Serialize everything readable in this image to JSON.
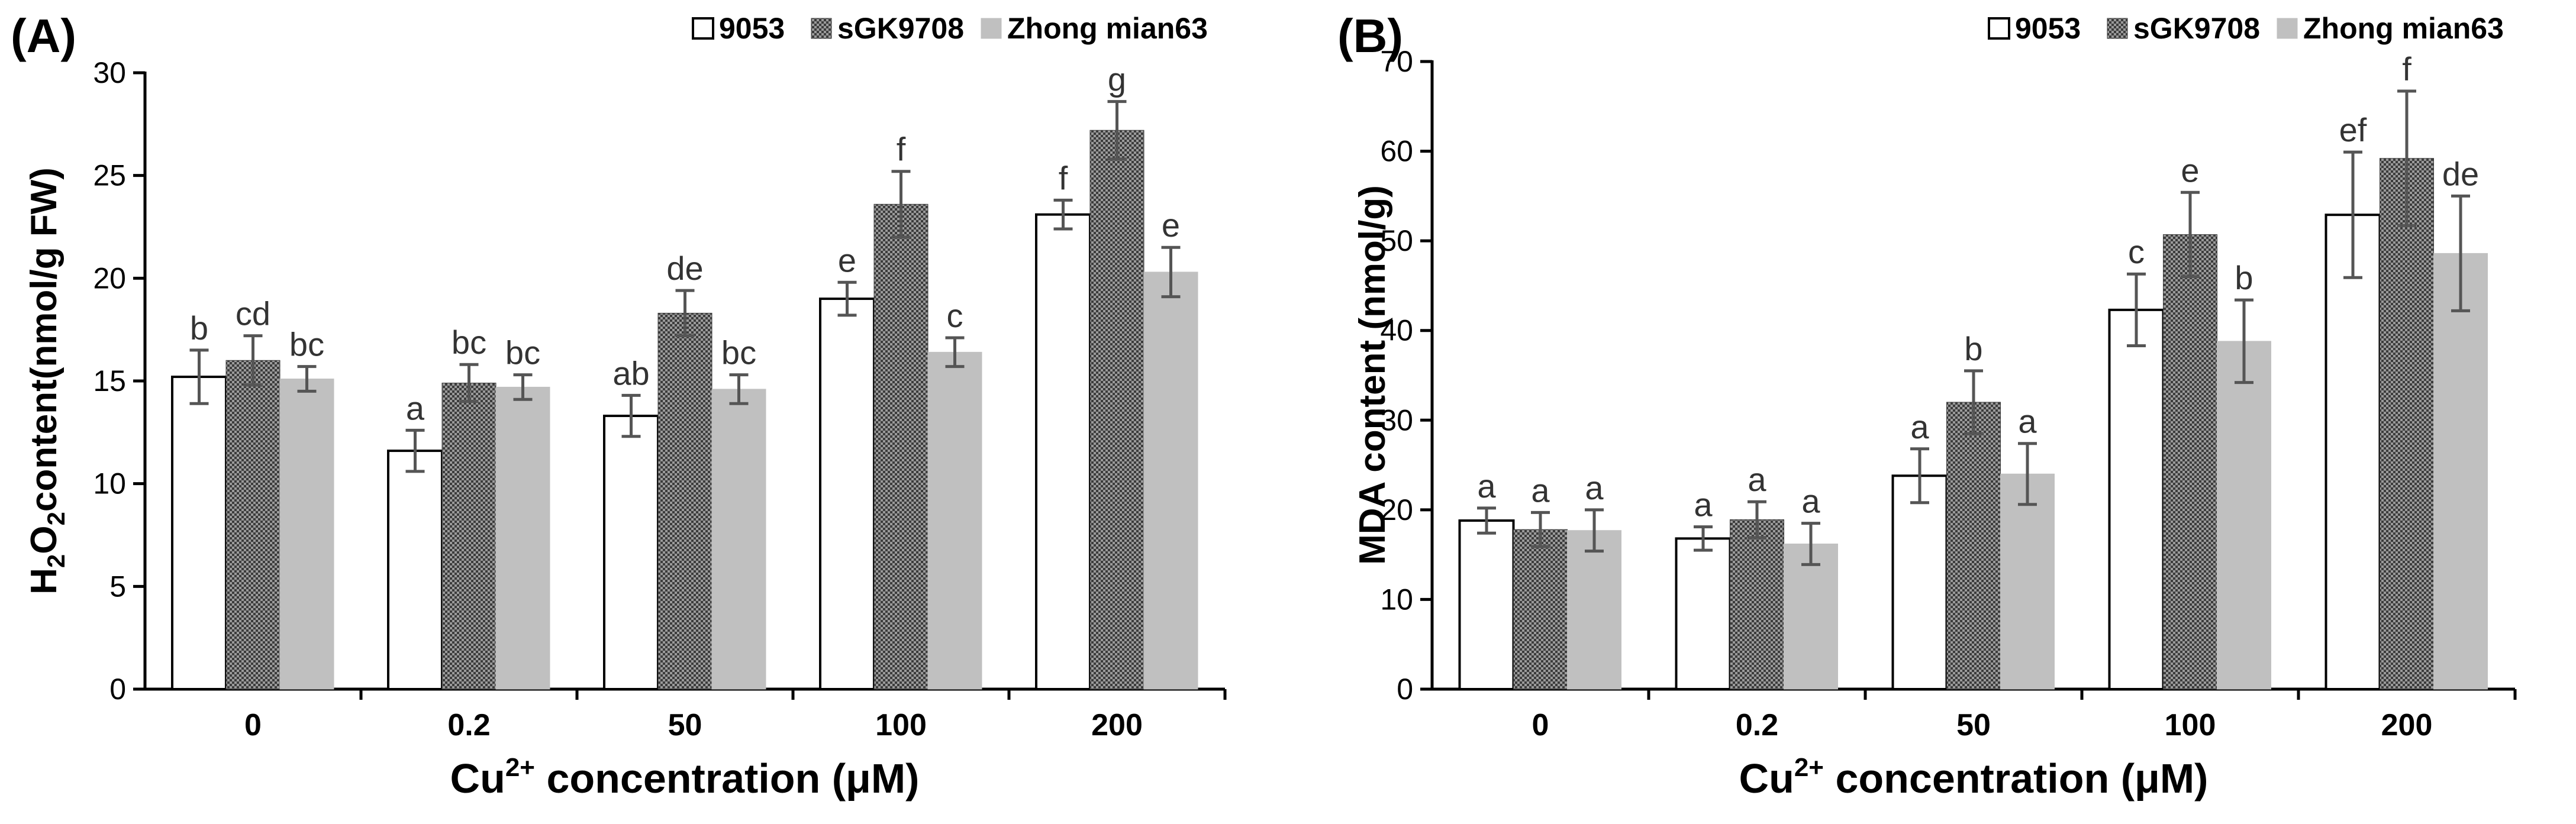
{
  "chart_data": [
    {
      "type": "bar",
      "panel": "(A)",
      "categories": [
        "0",
        "0.2",
        "50",
        "100",
        "200"
      ],
      "series": [
        {
          "name": "9053",
          "values": [
            15.2,
            11.6,
            13.3,
            19.0,
            23.1
          ],
          "errors": [
            1.3,
            1.0,
            1.0,
            0.8,
            0.7
          ],
          "letters": [
            "b",
            "a",
            "ab",
            "e",
            "f"
          ]
        },
        {
          "name": "sGK9708",
          "values": [
            16.0,
            14.9,
            18.3,
            23.6,
            27.2
          ],
          "errors": [
            1.2,
            0.9,
            1.1,
            1.6,
            1.4
          ],
          "letters": [
            "cd",
            "bc",
            "de",
            "f",
            "g"
          ]
        },
        {
          "name": "Zhong mian63",
          "values": [
            15.1,
            14.7,
            14.6,
            16.4,
            20.3
          ],
          "errors": [
            0.6,
            0.6,
            0.7,
            0.7,
            1.2
          ],
          "letters": [
            "bc",
            "bc",
            "bc",
            "c",
            "e"
          ]
        }
      ],
      "ylabel_parts": [
        "H",
        "2",
        "O",
        "2",
        "content(nmol/g FW)"
      ],
      "xlabel_parts": [
        "Cu",
        "2+",
        " concentration (μM)"
      ],
      "ylim": [
        0,
        30
      ],
      "yticks": [
        0,
        5,
        10,
        15,
        20,
        25,
        30
      ],
      "legend": "top-right"
    },
    {
      "type": "bar",
      "panel": "(B)",
      "categories": [
        "0",
        "0.2",
        "50",
        "100",
        "200"
      ],
      "series": [
        {
          "name": "9053",
          "values": [
            18.8,
            16.8,
            23.8,
            42.3,
            52.9
          ],
          "errors": [
            1.4,
            1.3,
            3.0,
            4.0,
            7.0
          ],
          "letters": [
            "a",
            "a",
            "a",
            "c",
            "ef"
          ]
        },
        {
          "name": "sGK9708",
          "values": [
            17.8,
            18.9,
            32.0,
            50.7,
            59.2
          ],
          "errors": [
            1.9,
            2.0,
            3.5,
            4.7,
            7.5
          ],
          "letters": [
            "a",
            "a",
            "b",
            "e",
            "f"
          ]
        },
        {
          "name": "Zhong mian63",
          "values": [
            17.7,
            16.2,
            24.0,
            38.8,
            48.6
          ],
          "errors": [
            2.3,
            2.3,
            3.4,
            4.6,
            6.4
          ],
          "letters": [
            "a",
            "a",
            "a",
            "b",
            "de"
          ]
        }
      ],
      "ylabel_parts": [
        "MDA content (nmol/g)"
      ],
      "xlabel_parts": [
        "Cu",
        "2+",
        " concentration (μM)"
      ],
      "ylim": [
        0,
        70
      ],
      "yticks": [
        0,
        10,
        20,
        30,
        40,
        50,
        60,
        70
      ],
      "legend": "top-right"
    }
  ],
  "colors": {
    "series_9053": "#ffffff",
    "series_sGK9708": "#7a7a7a",
    "series_Zhong": "#c0c0c0",
    "axis": "#000000",
    "error": "#555555"
  }
}
